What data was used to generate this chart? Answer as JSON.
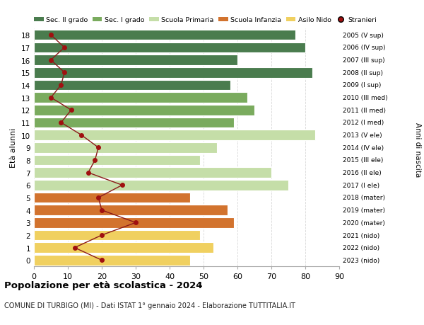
{
  "ages": [
    18,
    17,
    16,
    15,
    14,
    13,
    12,
    11,
    10,
    9,
    8,
    7,
    6,
    5,
    4,
    3,
    2,
    1,
    0
  ],
  "right_labels": [
    "2005 (V sup)",
    "2006 (IV sup)",
    "2007 (III sup)",
    "2008 (II sup)",
    "2009 (I sup)",
    "2010 (III med)",
    "2011 (II med)",
    "2012 (I med)",
    "2013 (V ele)",
    "2014 (IV ele)",
    "2015 (III ele)",
    "2016 (II ele)",
    "2017 (I ele)",
    "2018 (mater)",
    "2019 (mater)",
    "2020 (mater)",
    "2021 (nido)",
    "2022 (nido)",
    "2023 (nido)"
  ],
  "bar_values": [
    77,
    80,
    60,
    82,
    58,
    63,
    65,
    59,
    83,
    54,
    49,
    70,
    75,
    46,
    57,
    59,
    49,
    53,
    46
  ],
  "bar_colors": [
    "#4a7c4e",
    "#4a7c4e",
    "#4a7c4e",
    "#4a7c4e",
    "#4a7c4e",
    "#7aab5e",
    "#7aab5e",
    "#7aab5e",
    "#c5dea8",
    "#c5dea8",
    "#c5dea8",
    "#c5dea8",
    "#c5dea8",
    "#d2732e",
    "#d2732e",
    "#d2732e",
    "#f0d060",
    "#f0d060",
    "#f0d060"
  ],
  "stranieri_values": [
    5,
    9,
    5,
    9,
    8,
    5,
    11,
    8,
    14,
    19,
    18,
    16,
    26,
    19,
    20,
    30,
    20,
    12,
    20
  ],
  "legend_labels": [
    "Sec. II grado",
    "Sec. I grado",
    "Scuola Primaria",
    "Scuola Infanzia",
    "Asilo Nido",
    "Stranieri"
  ],
  "legend_colors": [
    "#4a7c4e",
    "#7aab5e",
    "#c5dea8",
    "#d2732e",
    "#f0d060",
    "#c0392b"
  ],
  "ylabel": "Età alunni",
  "right_axis_label": "Anni di nascita",
  "title": "Popolazione per età scolastica - 2024",
  "subtitle": "COMUNE DI TURBIGO (MI) - Dati ISTAT 1° gennaio 2024 - Elaborazione TUTTITALIA.IT",
  "xlim": [
    0,
    90
  ],
  "background_color": "#ffffff",
  "grid_color": "#d8d8d8",
  "stranieri_color": "#a01010",
  "stranieri_line_color": "#8b1a1a"
}
